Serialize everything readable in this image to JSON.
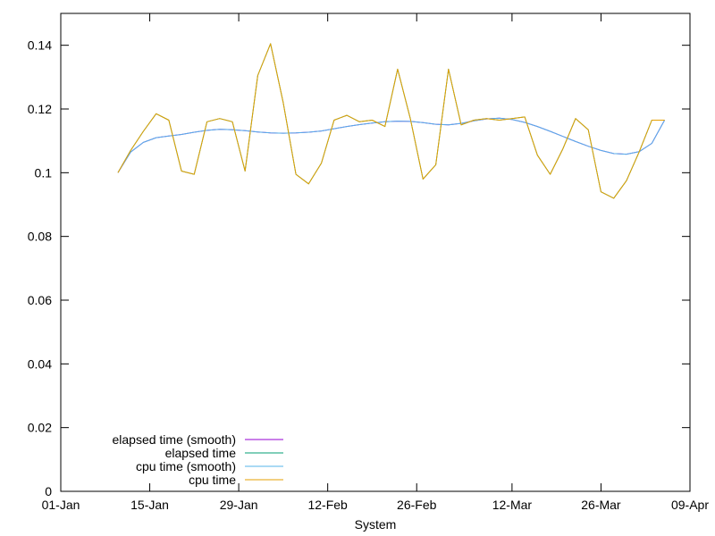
{
  "chart_data": {
    "type": "line",
    "title": "",
    "xlabel": "System",
    "ylabel": "",
    "x_axis": {
      "type": "date",
      "range": [
        "2000-01-01",
        "2000-04-09"
      ],
      "tick_dates": [
        "2000-01-01",
        "2000-01-15",
        "2000-01-29",
        "2000-02-12",
        "2000-02-26",
        "2000-03-12",
        "2000-03-26",
        "2000-04-09"
      ],
      "tick_labels": [
        "01-Jan",
        "15-Jan",
        "29-Jan",
        "12-Feb",
        "26-Feb",
        "12-Mar",
        "26-Mar",
        "09-Apr"
      ]
    },
    "y_axis": {
      "range": [
        0,
        0.15
      ],
      "ticks": [
        0,
        0.02,
        0.04,
        0.06,
        0.08,
        0.1,
        0.12,
        0.14
      ],
      "tick_labels": [
        "0",
        "0.02",
        "0.04",
        "0.06",
        "0.08",
        "0.1",
        "0.12",
        "0.14"
      ]
    },
    "grid": false,
    "legend_position": "bottom-left",
    "x": [
      "2000-01-10",
      "2000-01-12",
      "2000-01-14",
      "2000-01-16",
      "2000-01-18",
      "2000-01-20",
      "2000-01-22",
      "2000-01-24",
      "2000-01-26",
      "2000-01-28",
      "2000-01-30",
      "2000-02-01",
      "2000-02-03",
      "2000-02-05",
      "2000-02-07",
      "2000-02-09",
      "2000-02-11",
      "2000-02-13",
      "2000-02-15",
      "2000-02-17",
      "2000-02-19",
      "2000-02-21",
      "2000-02-23",
      "2000-02-25",
      "2000-02-27",
      "2000-02-29",
      "2000-03-02",
      "2000-03-04",
      "2000-03-06",
      "2000-03-08",
      "2000-03-10",
      "2000-03-12",
      "2000-03-14",
      "2000-03-16",
      "2000-03-18",
      "2000-03-20",
      "2000-03-22",
      "2000-03-24",
      "2000-03-26",
      "2000-03-28",
      "2000-03-30",
      "2000-04-01",
      "2000-04-03",
      "2000-04-05"
    ],
    "series": [
      {
        "name": "elapsed time (smooth)",
        "color": "#9400d3",
        "values": [
          0.1,
          0.1065,
          0.1095,
          0.111,
          0.1115,
          0.112,
          0.1127,
          0.1133,
          0.1136,
          0.1135,
          0.1132,
          0.1128,
          0.1125,
          0.1124,
          0.1125,
          0.1127,
          0.1131,
          0.1138,
          0.1145,
          0.1151,
          0.1156,
          0.116,
          0.1162,
          0.1161,
          0.1157,
          0.1152,
          0.115,
          0.1155,
          0.1163,
          0.1169,
          0.1171,
          0.1167,
          0.1158,
          0.1145,
          0.113,
          0.1114,
          0.1098,
          0.1083,
          0.107,
          0.106,
          0.1058,
          0.1066,
          0.1092,
          0.1165
        ]
      },
      {
        "name": "elapsed time",
        "color": "#009e73",
        "values": [
          0.1,
          0.107,
          0.113,
          0.1185,
          0.1165,
          0.1005,
          0.0995,
          0.116,
          0.117,
          0.116,
          0.1005,
          0.1305,
          0.1405,
          0.122,
          0.0995,
          0.0965,
          0.103,
          0.1165,
          0.118,
          0.116,
          0.1165,
          0.1145,
          0.1325,
          0.117,
          0.098,
          0.1025,
          0.1325,
          0.115,
          0.1165,
          0.117,
          0.1165,
          0.117,
          0.1175,
          0.1055,
          0.0995,
          0.1075,
          0.117,
          0.1135,
          0.094,
          0.092,
          0.0975,
          0.1065,
          0.1165,
          0.1165
        ]
      },
      {
        "name": "cpu time (smooth)",
        "color": "#56b4e9",
        "values": [
          0.1,
          0.1065,
          0.1095,
          0.111,
          0.1115,
          0.112,
          0.1127,
          0.1133,
          0.1136,
          0.1135,
          0.1132,
          0.1128,
          0.1125,
          0.1124,
          0.1125,
          0.1127,
          0.1131,
          0.1138,
          0.1145,
          0.1151,
          0.1156,
          0.116,
          0.1162,
          0.1161,
          0.1157,
          0.1152,
          0.115,
          0.1155,
          0.1163,
          0.1169,
          0.1171,
          0.1167,
          0.1158,
          0.1145,
          0.113,
          0.1114,
          0.1098,
          0.1083,
          0.107,
          0.106,
          0.1058,
          0.1066,
          0.1092,
          0.1165
        ]
      },
      {
        "name": "cpu time",
        "color": "#e69f00",
        "values": [
          0.1,
          0.107,
          0.113,
          0.1185,
          0.1165,
          0.1005,
          0.0995,
          0.116,
          0.117,
          0.116,
          0.1005,
          0.1305,
          0.1405,
          0.122,
          0.0995,
          0.0965,
          0.103,
          0.1165,
          0.118,
          0.116,
          0.1165,
          0.1145,
          0.1325,
          0.117,
          0.098,
          0.1025,
          0.1325,
          0.115,
          0.1165,
          0.117,
          0.1165,
          0.117,
          0.1175,
          0.1055,
          0.0995,
          0.1075,
          0.117,
          0.1135,
          0.094,
          0.092,
          0.0975,
          0.1065,
          0.1165,
          0.1165
        ]
      }
    ]
  }
}
